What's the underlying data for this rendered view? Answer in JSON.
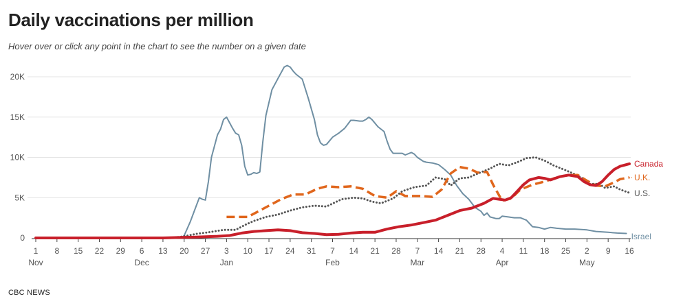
{
  "title": "Daily vaccinations per million",
  "subtitle": "Hover over or click any point in the chart to see the number on a given date",
  "source": "CBC NEWS",
  "chart_data": {
    "type": "line",
    "title": "Daily vaccinations per million",
    "ylim": [
      0,
      21500
    ],
    "yticks": [
      0,
      5000,
      10000,
      15000,
      20000
    ],
    "ytick_labels": [
      "0",
      "5K",
      "10K",
      "15K",
      "20K"
    ],
    "xlim": [
      "2020-11-01",
      "2021-05-16"
    ],
    "xticks": [
      {
        "date": "2020-11-01",
        "label": "1",
        "month": "Nov"
      },
      {
        "date": "2020-11-08",
        "label": "8"
      },
      {
        "date": "2020-11-15",
        "label": "15"
      },
      {
        "date": "2020-11-22",
        "label": "22"
      },
      {
        "date": "2020-11-29",
        "label": "29"
      },
      {
        "date": "2020-12-06",
        "label": "6",
        "month": "Dec"
      },
      {
        "date": "2020-12-13",
        "label": "13"
      },
      {
        "date": "2020-12-20",
        "label": "20"
      },
      {
        "date": "2020-12-27",
        "label": "27"
      },
      {
        "date": "2021-01-03",
        "label": "3",
        "month": "Jan"
      },
      {
        "date": "2021-01-10",
        "label": "10"
      },
      {
        "date": "2021-01-17",
        "label": "17"
      },
      {
        "date": "2021-01-24",
        "label": "24"
      },
      {
        "date": "2021-01-31",
        "label": "31"
      },
      {
        "date": "2021-02-07",
        "label": "7",
        "month": "Feb"
      },
      {
        "date": "2021-02-14",
        "label": "14"
      },
      {
        "date": "2021-02-21",
        "label": "21"
      },
      {
        "date": "2021-02-28",
        "label": "28"
      },
      {
        "date": "2021-03-07",
        "label": "7",
        "month": "Mar"
      },
      {
        "date": "2021-03-14",
        "label": "14"
      },
      {
        "date": "2021-03-21",
        "label": "21"
      },
      {
        "date": "2021-03-28",
        "label": "28"
      },
      {
        "date": "2021-04-04",
        "label": "4",
        "month": "Apr"
      },
      {
        "date": "2021-04-11",
        "label": "11"
      },
      {
        "date": "2021-04-18",
        "label": "18"
      },
      {
        "date": "2021-04-25",
        "label": "25"
      },
      {
        "date": "2021-05-02",
        "label": "2",
        "month": "May"
      },
      {
        "date": "2021-05-09",
        "label": "9"
      },
      {
        "date": "2021-05-16",
        "label": "16"
      }
    ],
    "grid": "horizontal",
    "series": [
      {
        "name": "Israel",
        "color": "#6f8fa3",
        "style": "solid",
        "points": [
          [
            "2020-11-01",
            0
          ],
          [
            "2020-11-15",
            0
          ],
          [
            "2020-12-01",
            0
          ],
          [
            "2020-12-19",
            0
          ],
          [
            "2020-12-20",
            300
          ],
          [
            "2020-12-22",
            2000
          ],
          [
            "2020-12-24",
            4000
          ],
          [
            "2020-12-25",
            5000
          ],
          [
            "2020-12-26",
            4800
          ],
          [
            "2020-12-27",
            4700
          ],
          [
            "2020-12-28",
            7000
          ],
          [
            "2020-12-29",
            10000
          ],
          [
            "2020-12-31",
            12800
          ],
          [
            "2021-01-01",
            13500
          ],
          [
            "2021-01-02",
            14700
          ],
          [
            "2021-01-03",
            15000
          ],
          [
            "2021-01-04",
            14300
          ],
          [
            "2021-01-05",
            13600
          ],
          [
            "2021-01-06",
            13000
          ],
          [
            "2021-01-07",
            12800
          ],
          [
            "2021-01-08",
            11500
          ],
          [
            "2021-01-09",
            8900
          ],
          [
            "2021-01-10",
            7800
          ],
          [
            "2021-01-11",
            7900
          ],
          [
            "2021-01-12",
            8100
          ],
          [
            "2021-01-13",
            8000
          ],
          [
            "2021-01-14",
            8200
          ],
          [
            "2021-01-15",
            12000
          ],
          [
            "2021-01-16",
            15200
          ],
          [
            "2021-01-18",
            18400
          ],
          [
            "2021-01-20",
            19800
          ],
          [
            "2021-01-22",
            21200
          ],
          [
            "2021-01-23",
            21400
          ],
          [
            "2021-01-24",
            21200
          ],
          [
            "2021-01-25",
            20700
          ],
          [
            "2021-01-26",
            20300
          ],
          [
            "2021-01-28",
            19700
          ],
          [
            "2021-01-30",
            17300
          ],
          [
            "2021-02-01",
            14700
          ],
          [
            "2021-02-02",
            12800
          ],
          [
            "2021-02-03",
            11800
          ],
          [
            "2021-02-04",
            11500
          ],
          [
            "2021-02-05",
            11600
          ],
          [
            "2021-02-07",
            12500
          ],
          [
            "2021-02-09",
            13000
          ],
          [
            "2021-02-11",
            13600
          ],
          [
            "2021-02-13",
            14600
          ],
          [
            "2021-02-14",
            14600
          ],
          [
            "2021-02-16",
            14500
          ],
          [
            "2021-02-17",
            14500
          ],
          [
            "2021-02-18",
            14700
          ],
          [
            "2021-02-19",
            15000
          ],
          [
            "2021-02-20",
            14700
          ],
          [
            "2021-02-22",
            13800
          ],
          [
            "2021-02-24",
            13200
          ],
          [
            "2021-02-25",
            12000
          ],
          [
            "2021-02-26",
            11000
          ],
          [
            "2021-02-27",
            10500
          ],
          [
            "2021-02-28",
            10500
          ],
          [
            "2021-03-02",
            10500
          ],
          [
            "2021-03-03",
            10300
          ],
          [
            "2021-03-05",
            10600
          ],
          [
            "2021-03-06",
            10400
          ],
          [
            "2021-03-07",
            10000
          ],
          [
            "2021-03-09",
            9500
          ],
          [
            "2021-03-10",
            9400
          ],
          [
            "2021-03-12",
            9300
          ],
          [
            "2021-03-14",
            9100
          ],
          [
            "2021-03-16",
            8500
          ],
          [
            "2021-03-18",
            7800
          ],
          [
            "2021-03-20",
            6500
          ],
          [
            "2021-03-22",
            5500
          ],
          [
            "2021-03-24",
            4800
          ],
          [
            "2021-03-26",
            3800
          ],
          [
            "2021-03-28",
            3300
          ],
          [
            "2021-03-29",
            2800
          ],
          [
            "2021-03-30",
            3100
          ],
          [
            "2021-03-31",
            2600
          ],
          [
            "2021-04-02",
            2400
          ],
          [
            "2021-04-03",
            2400
          ],
          [
            "2021-04-04",
            2700
          ],
          [
            "2021-04-06",
            2600
          ],
          [
            "2021-04-08",
            2500
          ],
          [
            "2021-04-10",
            2500
          ],
          [
            "2021-04-12",
            2200
          ],
          [
            "2021-04-14",
            1400
          ],
          [
            "2021-04-16",
            1300
          ],
          [
            "2021-04-18",
            1100
          ],
          [
            "2021-04-20",
            1300
          ],
          [
            "2021-04-22",
            1200
          ],
          [
            "2021-04-25",
            1100
          ],
          [
            "2021-04-28",
            1100
          ],
          [
            "2021-05-02",
            1000
          ],
          [
            "2021-05-05",
            800
          ],
          [
            "2021-05-09",
            700
          ],
          [
            "2021-05-12",
            600
          ],
          [
            "2021-05-15",
            550
          ]
        ]
      },
      {
        "name": "U.S.",
        "color": "#555555",
        "style": "dotted",
        "points": [
          [
            "2020-11-01",
            0
          ],
          [
            "2020-12-13",
            0
          ],
          [
            "2020-12-17",
            50
          ],
          [
            "2020-12-20",
            200
          ],
          [
            "2020-12-24",
            500
          ],
          [
            "2020-12-28",
            700
          ],
          [
            "2021-01-02",
            1000
          ],
          [
            "2021-01-06",
            1000
          ],
          [
            "2021-01-09",
            1600
          ],
          [
            "2021-01-12",
            2100
          ],
          [
            "2021-01-16",
            2600
          ],
          [
            "2021-01-20",
            2900
          ],
          [
            "2021-01-24",
            3400
          ],
          [
            "2021-01-28",
            3800
          ],
          [
            "2021-02-01",
            4000
          ],
          [
            "2021-02-05",
            3900
          ],
          [
            "2021-02-10",
            4800
          ],
          [
            "2021-02-14",
            5000
          ],
          [
            "2021-02-17",
            4900
          ],
          [
            "2021-02-20",
            4500
          ],
          [
            "2021-02-23",
            4300
          ],
          [
            "2021-02-27",
            4900
          ],
          [
            "2021-03-02",
            5800
          ],
          [
            "2021-03-06",
            6300
          ],
          [
            "2021-03-10",
            6500
          ],
          [
            "2021-03-13",
            7500
          ],
          [
            "2021-03-16",
            7300
          ],
          [
            "2021-03-18",
            6500
          ],
          [
            "2021-03-21",
            7400
          ],
          [
            "2021-03-24",
            7500
          ],
          [
            "2021-03-27",
            8000
          ],
          [
            "2021-03-31",
            8600
          ],
          [
            "2021-04-03",
            9200
          ],
          [
            "2021-04-06",
            9000
          ],
          [
            "2021-04-09",
            9400
          ],
          [
            "2021-04-12",
            9900
          ],
          [
            "2021-04-15",
            10000
          ],
          [
            "2021-04-18",
            9600
          ],
          [
            "2021-04-21",
            9000
          ],
          [
            "2021-04-25",
            8400
          ],
          [
            "2021-04-28",
            7900
          ],
          [
            "2021-05-01",
            7300
          ],
          [
            "2021-05-03",
            6700
          ],
          [
            "2021-05-06",
            6700
          ],
          [
            "2021-05-08",
            6200
          ],
          [
            "2021-05-11",
            6400
          ],
          [
            "2021-05-13",
            6000
          ],
          [
            "2021-05-16",
            5600
          ]
        ]
      },
      {
        "name": "U.K.",
        "color": "#e0661c",
        "style": "dashed",
        "points": [
          [
            "2021-01-03",
            2600
          ],
          [
            "2021-01-10",
            2600
          ],
          [
            "2021-01-13",
            3200
          ],
          [
            "2021-01-17",
            4000
          ],
          [
            "2021-01-21",
            4800
          ],
          [
            "2021-01-25",
            5400
          ],
          [
            "2021-01-29",
            5400
          ],
          [
            "2021-02-02",
            6100
          ],
          [
            "2021-02-05",
            6400
          ],
          [
            "2021-02-09",
            6300
          ],
          [
            "2021-02-13",
            6400
          ],
          [
            "2021-02-17",
            6100
          ],
          [
            "2021-02-21",
            5200
          ],
          [
            "2021-02-25",
            5000
          ],
          [
            "2021-02-28",
            5800
          ],
          [
            "2021-03-03",
            5200
          ],
          [
            "2021-03-08",
            5200
          ],
          [
            "2021-03-12",
            5100
          ],
          [
            "2021-03-15",
            6000
          ],
          [
            "2021-03-18",
            8000
          ],
          [
            "2021-03-21",
            8800
          ],
          [
            "2021-03-24",
            8600
          ],
          [
            "2021-03-27",
            8100
          ],
          [
            "2021-03-30",
            8200
          ],
          [
            "2021-04-01",
            6600
          ],
          [
            "2021-04-04",
            4600
          ],
          [
            "2021-04-07",
            4900
          ],
          [
            "2021-04-10",
            6000
          ],
          [
            "2021-04-14",
            6600
          ],
          [
            "2021-04-18",
            7000
          ],
          [
            "2021-04-22",
            7500
          ],
          [
            "2021-04-26",
            7800
          ],
          [
            "2021-04-29",
            7800
          ],
          [
            "2021-05-02",
            7100
          ],
          [
            "2021-05-05",
            6500
          ],
          [
            "2021-05-08",
            6400
          ],
          [
            "2021-05-11",
            6900
          ],
          [
            "2021-05-13",
            7300
          ],
          [
            "2021-05-16",
            7500
          ]
        ]
      },
      {
        "name": "Canada",
        "color": "#c81f2a",
        "style": "solid",
        "points": [
          [
            "2020-11-01",
            0
          ],
          [
            "2020-12-13",
            0
          ],
          [
            "2020-12-18",
            50
          ],
          [
            "2020-12-24",
            100
          ],
          [
            "2020-12-31",
            200
          ],
          [
            "2021-01-04",
            300
          ],
          [
            "2021-01-08",
            600
          ],
          [
            "2021-01-12",
            800
          ],
          [
            "2021-01-16",
            900
          ],
          [
            "2021-01-20",
            1000
          ],
          [
            "2021-01-24",
            900
          ],
          [
            "2021-01-28",
            650
          ],
          [
            "2021-02-01",
            550
          ],
          [
            "2021-02-05",
            400
          ],
          [
            "2021-02-09",
            450
          ],
          [
            "2021-02-13",
            600
          ],
          [
            "2021-02-17",
            700
          ],
          [
            "2021-02-21",
            700
          ],
          [
            "2021-02-25",
            1100
          ],
          [
            "2021-03-01",
            1400
          ],
          [
            "2021-03-05",
            1600
          ],
          [
            "2021-03-09",
            1900
          ],
          [
            "2021-03-13",
            2200
          ],
          [
            "2021-03-17",
            2800
          ],
          [
            "2021-03-21",
            3400
          ],
          [
            "2021-03-25",
            3700
          ],
          [
            "2021-03-29",
            4300
          ],
          [
            "2021-04-01",
            4900
          ],
          [
            "2021-04-03",
            4800
          ],
          [
            "2021-04-05",
            4700
          ],
          [
            "2021-04-07",
            5000
          ],
          [
            "2021-04-09",
            5800
          ],
          [
            "2021-04-11",
            6600
          ],
          [
            "2021-04-13",
            7200
          ],
          [
            "2021-04-16",
            7500
          ],
          [
            "2021-04-18",
            7400
          ],
          [
            "2021-04-20",
            7200
          ],
          [
            "2021-04-23",
            7600
          ],
          [
            "2021-04-26",
            7800
          ],
          [
            "2021-04-29",
            7600
          ],
          [
            "2021-05-01",
            7000
          ],
          [
            "2021-05-03",
            6600
          ],
          [
            "2021-05-05",
            6500
          ],
          [
            "2021-05-07",
            7000
          ],
          [
            "2021-05-09",
            7800
          ],
          [
            "2021-05-11",
            8500
          ],
          [
            "2021-05-13",
            8900
          ],
          [
            "2021-05-16",
            9200
          ]
        ]
      }
    ]
  }
}
